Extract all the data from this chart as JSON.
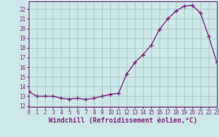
{
  "x": [
    0,
    1,
    2,
    3,
    4,
    5,
    6,
    7,
    8,
    9,
    10,
    11,
    12,
    13,
    14,
    15,
    16,
    17,
    18,
    19,
    20,
    21,
    22,
    23
  ],
  "y": [
    13.5,
    13.0,
    13.0,
    13.0,
    12.8,
    12.7,
    12.8,
    12.65,
    12.8,
    13.0,
    13.2,
    13.3,
    15.3,
    16.5,
    17.3,
    18.3,
    19.9,
    21.0,
    21.8,
    22.3,
    22.4,
    21.6,
    19.2,
    16.5
  ],
  "line_color": "#802080",
  "marker": "+",
  "marker_size": 4,
  "bg_color": "#cce8e8",
  "grid_color": "#aacccc",
  "xlabel": "Windchill (Refroidissement éolien,°C)",
  "xlabel_color": "#802080",
  "ylabel_ticks": [
    12,
    13,
    14,
    15,
    16,
    17,
    18,
    19,
    20,
    21,
    22
  ],
  "xlim": [
    0,
    23
  ],
  "ylim": [
    11.9,
    22.8
  ],
  "xticks": [
    0,
    1,
    2,
    3,
    4,
    5,
    6,
    7,
    8,
    9,
    10,
    11,
    12,
    13,
    14,
    15,
    16,
    17,
    18,
    19,
    20,
    21,
    22,
    23
  ],
  "tick_color": "#802080",
  "tick_fontsize": 5.5,
  "xlabel_fontsize": 7.0,
  "axis_spine_color": "#802080",
  "linewidth": 1.0
}
